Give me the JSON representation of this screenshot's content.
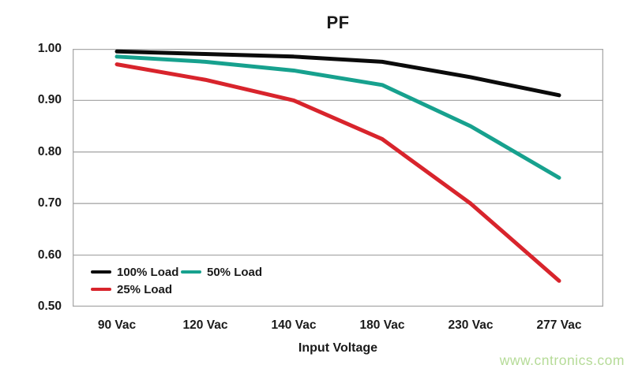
{
  "watermark": "www.cntronics.com",
  "colors": {
    "grid": "#a9a9a9",
    "text": "#1a1a1a",
    "watermark": "#b5db97",
    "background": "#ffffff"
  },
  "chart_data": {
    "type": "line",
    "title": "PF",
    "xlabel": "Input Voltage",
    "ylabel": "",
    "categories": [
      "90 Vac",
      "120 Vac",
      "140 Vac",
      "180 Vac",
      "230 Vac",
      "277 Vac"
    ],
    "y_ticks": [
      "1.00",
      "0.90",
      "0.80",
      "0.70",
      "0.60",
      "0.50"
    ],
    "ylim": [
      0.5,
      1.0
    ],
    "grid": true,
    "legend_position": "inside-bottom-left",
    "series": [
      {
        "name": "100% Load",
        "color": "#0b0b0b",
        "values": [
          0.995,
          0.99,
          0.985,
          0.975,
          0.945,
          0.91
        ]
      },
      {
        "name": "50% Load",
        "color": "#17a18e",
        "values": [
          0.985,
          0.975,
          0.958,
          0.93,
          0.85,
          0.75
        ]
      },
      {
        "name": "25% Load",
        "color": "#d8242c",
        "values": [
          0.97,
          0.94,
          0.9,
          0.825,
          0.7,
          0.55
        ]
      }
    ]
  }
}
